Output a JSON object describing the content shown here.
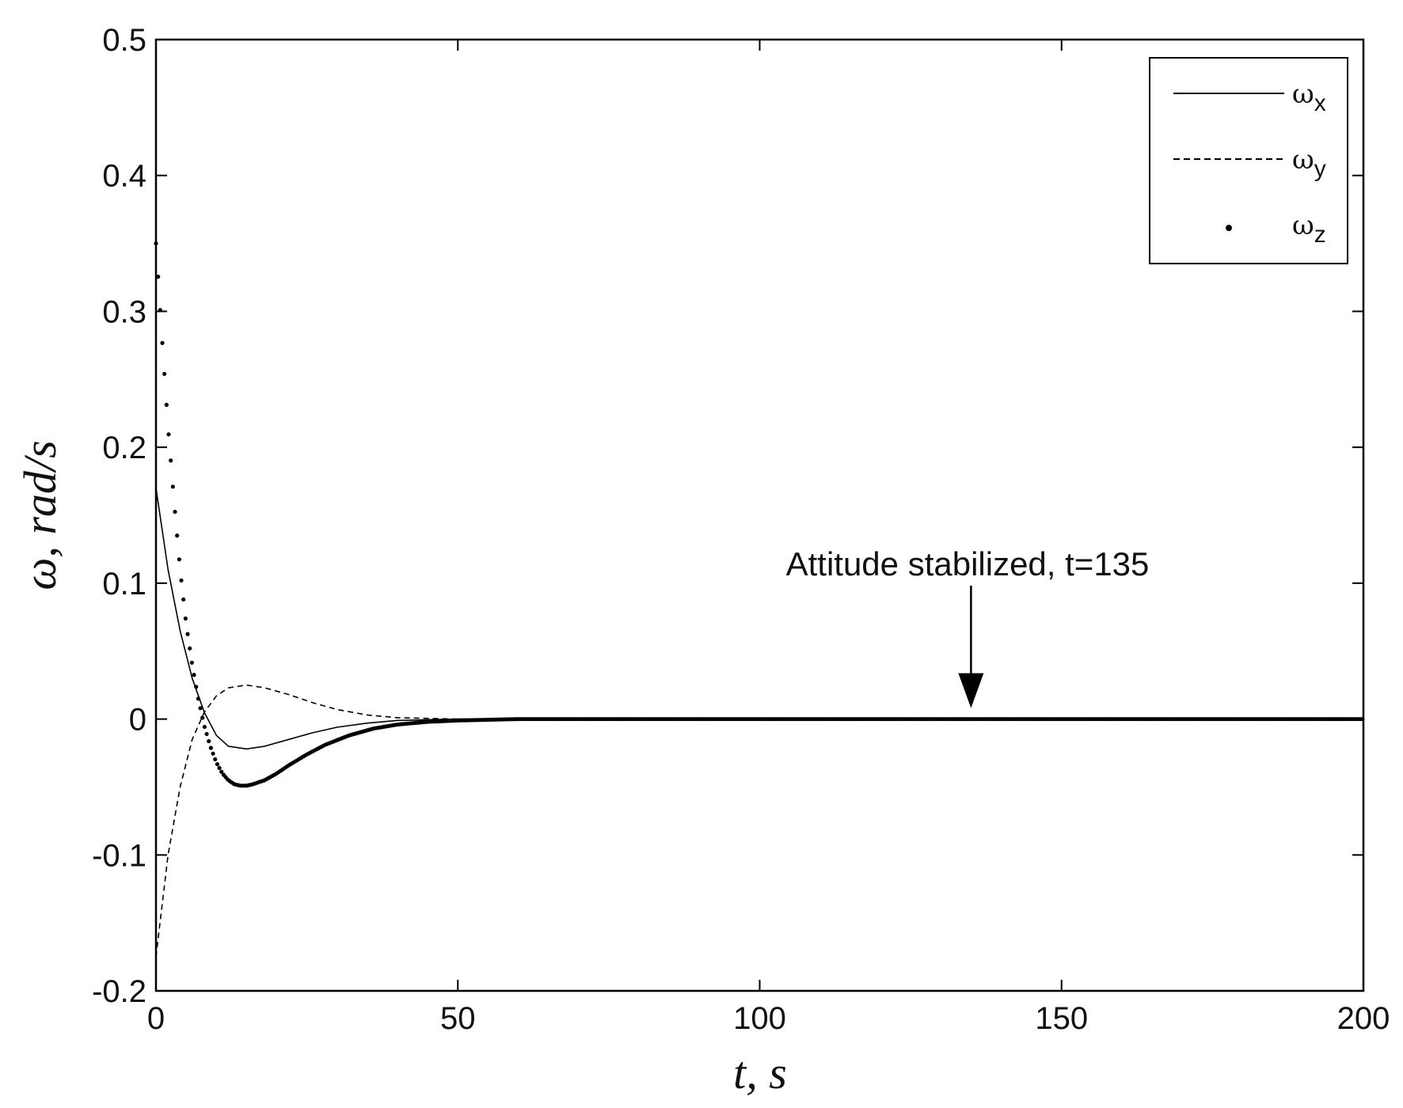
{
  "chart_data": {
    "type": "line",
    "xlabel": "t, s",
    "ylabel": "ω, rad/s",
    "xlim": [
      0,
      200
    ],
    "ylim": [
      -0.2,
      0.5
    ],
    "x_ticks": [
      "0",
      "50",
      "100",
      "150",
      "200"
    ],
    "y_ticks": [
      "-0.2",
      "-0.1",
      "0",
      "0.1",
      "0.2",
      "0.3",
      "0.4",
      "0.5"
    ],
    "grid": false,
    "legend_position": "top-right",
    "legend": [
      {
        "symbol": "ω",
        "sub": "x",
        "style": "solid"
      },
      {
        "symbol": "ω",
        "sub": "y",
        "style": "dashed"
      },
      {
        "symbol": "ω",
        "sub": "z",
        "style": "dotted"
      }
    ],
    "annotation": {
      "text": "Attitude stabilized, t=135",
      "x": 135,
      "y": 0
    },
    "series": [
      {
        "style": "solid",
        "x": [
          0,
          2,
          4,
          6,
          8,
          10,
          12,
          15,
          18,
          22,
          26,
          30,
          35,
          40,
          50,
          60,
          200
        ],
        "y": [
          0.17,
          0.11,
          0.065,
          0.03,
          0.005,
          -0.012,
          -0.02,
          -0.022,
          -0.02,
          -0.015,
          -0.01,
          -0.006,
          -0.003,
          -0.001,
          0,
          0,
          0
        ]
      },
      {
        "style": "dashed",
        "x": [
          0,
          2,
          4,
          6,
          8,
          10,
          12,
          15,
          18,
          22,
          26,
          30,
          35,
          40,
          50,
          60,
          200
        ],
        "y": [
          -0.175,
          -0.1,
          -0.05,
          -0.015,
          0.005,
          0.017,
          0.023,
          0.025,
          0.023,
          0.018,
          0.012,
          0.007,
          0.003,
          0.001,
          0,
          0,
          0
        ]
      },
      {
        "style": "dotted",
        "x": [
          0,
          1,
          2,
          3,
          4,
          5,
          6,
          7,
          8,
          9,
          10,
          11,
          12,
          13,
          14,
          15,
          16,
          18,
          20,
          22,
          25,
          28,
          32,
          36,
          40,
          45,
          50,
          55,
          60,
          200
        ],
        "y": [
          0.35,
          0.28,
          0.215,
          0.16,
          0.11,
          0.07,
          0.04,
          0.015,
          -0.005,
          -0.02,
          -0.032,
          -0.04,
          -0.045,
          -0.048,
          -0.049,
          -0.049,
          -0.048,
          -0.045,
          -0.04,
          -0.034,
          -0.026,
          -0.019,
          -0.012,
          -0.007,
          -0.004,
          -0.002,
          -0.001,
          -0.0005,
          0,
          0
        ]
      }
    ]
  }
}
